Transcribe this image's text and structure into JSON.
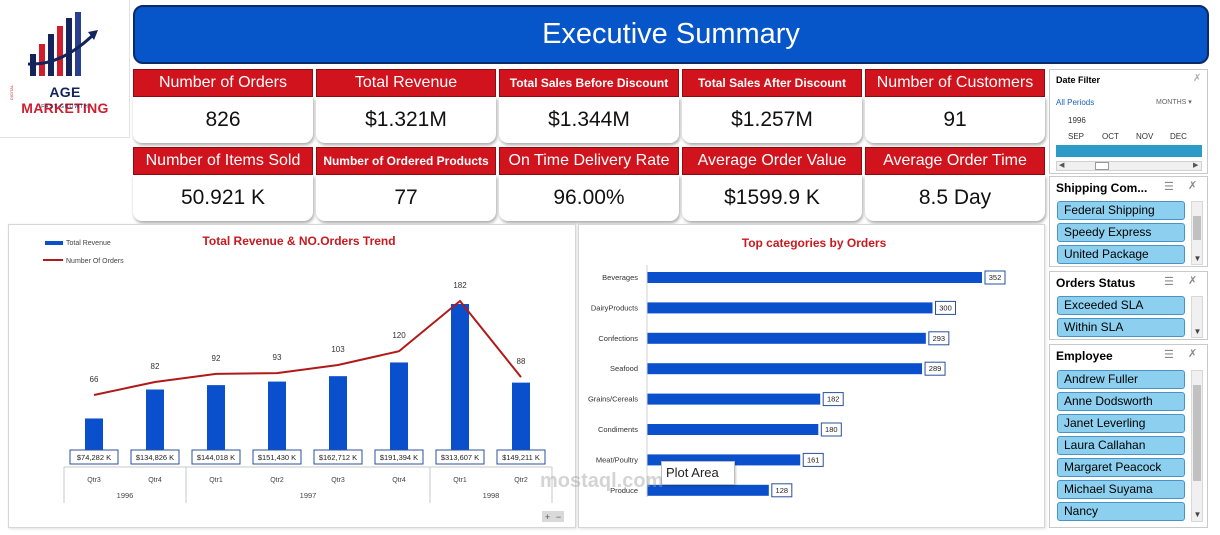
{
  "logo": {
    "brand_part1": "AGE ",
    "brand_part2": "MARKETING",
    "tagline": "FAST GROWTH",
    "side_text": "DIGITAL"
  },
  "header": {
    "title": "Executive Summary"
  },
  "kpis_row1": [
    {
      "label": "Number of Orders",
      "value": "826"
    },
    {
      "label": "Total Revenue",
      "value": "$1.321M"
    },
    {
      "label": "Total Sales Before Discount",
      "value": "$1.344M"
    },
    {
      "label": "Total Sales After Discount",
      "value": "$1.257M"
    },
    {
      "label": "Number of Customers",
      "value": "91"
    }
  ],
  "kpis_row2": [
    {
      "label": "Number of Items Sold",
      "value": "50.921 K"
    },
    {
      "label": "Number of Ordered Products",
      "value": "77"
    },
    {
      "label": "On Time Delivery Rate",
      "value": "96.00%"
    },
    {
      "label": "Average Order Value",
      "value": "$1599.9 K"
    },
    {
      "label": "Average Order Time",
      "value": "8.5 Day"
    }
  ],
  "colors": {
    "header_blue": "#0655c9",
    "kpi_red": "#d0131c",
    "bar_blue": "#0a50cc",
    "line_red": "#b01a1a",
    "slicer_item": "#8ccfef"
  },
  "chart_data": [
    {
      "type": "bar",
      "title": "Total Revenue & NO.Orders Trend",
      "legend": [
        "Total Revenue",
        "Number Of Orders"
      ],
      "legend_position": "top-left",
      "categories": [
        "Qtr3",
        "Qtr4",
        "Qtr1",
        "Qtr2",
        "Qtr3",
        "Qtr4",
        "Qtr1",
        "Qtr2"
      ],
      "years": [
        {
          "label": "1996",
          "span": 2
        },
        {
          "label": "1997",
          "span": 4
        },
        {
          "label": "1998",
          "span": 2
        }
      ],
      "series": [
        {
          "name": "Total Revenue",
          "type": "bar",
          "values": [
            74282,
            134826,
            144018,
            151430,
            162712,
            191394,
            313607,
            149211
          ],
          "labels": [
            "$74,282 K",
            "$134,826 K",
            "$144,018 K",
            "$151,430 K",
            "$162,712 K",
            "$191,394 K",
            "$313,607 K",
            "$149,211 K"
          ]
        },
        {
          "name": "Number Of Orders",
          "type": "line",
          "values": [
            66,
            82,
            92,
            93,
            103,
            120,
            182,
            88
          ]
        }
      ]
    },
    {
      "type": "bar",
      "orientation": "horizontal",
      "title": "Top categories by Orders",
      "categories": [
        "Beverages",
        "DairyProducts",
        "Confections",
        "Seafood",
        "Grains/Cereals",
        "Condiments",
        "Meat/Poultry",
        "Produce"
      ],
      "values": [
        352,
        300,
        293,
        289,
        182,
        180,
        161,
        128
      ],
      "xlim": [
        0,
        370
      ]
    }
  ],
  "tooltip": {
    "text": "Plot Area"
  },
  "chart_controls": {
    "plus": "+",
    "minus": "−"
  },
  "date_filter": {
    "title": "Date Filter",
    "periods": "All Periods",
    "granularity": "MONTHS",
    "year": "1996",
    "months": [
      "SEP",
      "OCT",
      "NOV",
      "DEC"
    ]
  },
  "shipping_slicer": {
    "title": "Shipping Com...",
    "items": [
      "Federal Shipping",
      "Speedy Express",
      "United Package"
    ]
  },
  "status_slicer": {
    "title": "Orders Status",
    "items": [
      "Exceeded SLA",
      "Within SLA"
    ]
  },
  "employee_slicer": {
    "title": "Employee",
    "items": [
      "Andrew Fuller",
      "Anne Dodsworth",
      "Janet Leverling",
      "Laura Callahan",
      "Margaret Peacock",
      "Michael Suyama",
      "Nancy"
    ]
  },
  "icons": {
    "multi_select": "multi-select-icon",
    "clear_filter": "clear-filter-icon",
    "dropdown": "chevron-down-icon"
  },
  "watermark": {
    "text": "mostaql.com"
  }
}
